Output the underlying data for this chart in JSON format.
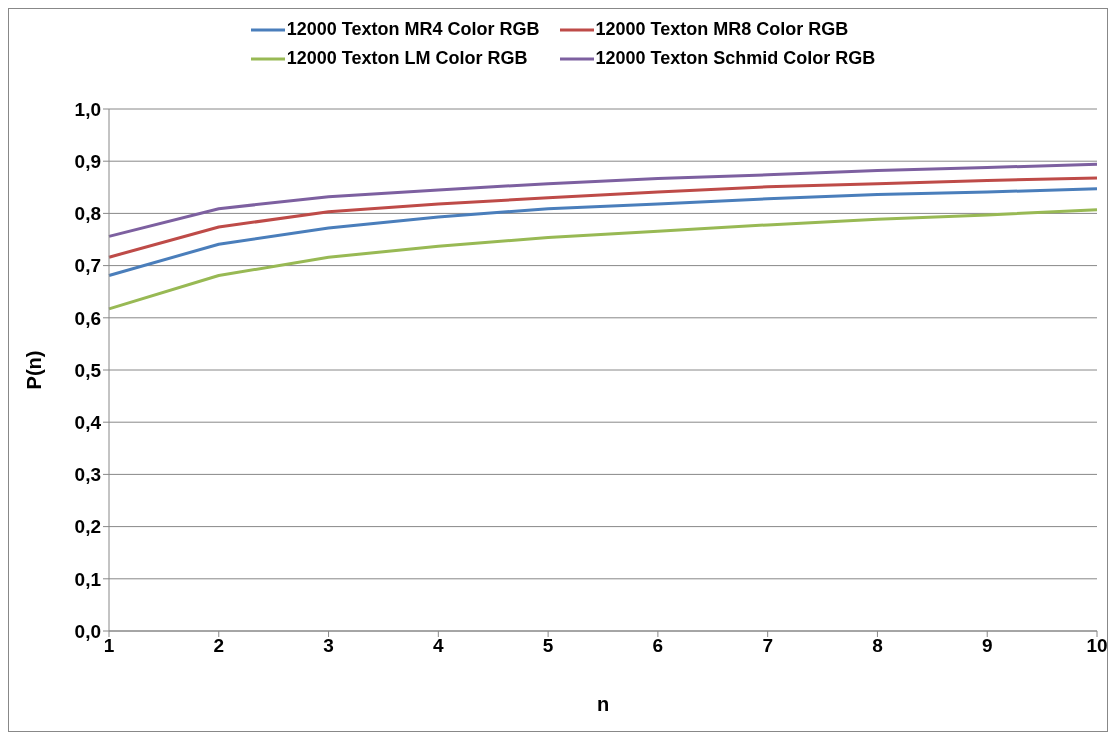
{
  "chart_data": {
    "type": "line",
    "xlabel": "n",
    "ylabel": "P(n)",
    "categories": [
      "1",
      "2",
      "3",
      "4",
      "5",
      "6",
      "7",
      "8",
      "9",
      "10"
    ],
    "series": [
      {
        "name": "12000 Texton MR4 Color RGB",
        "color": "#4a7ebb",
        "values": [
          0.681,
          0.741,
          0.772,
          0.793,
          0.809,
          0.818,
          0.828,
          0.836,
          0.841,
          0.847
        ]
      },
      {
        "name": "12000 Texton MR8 Color RGB",
        "color": "#be4b48",
        "values": [
          0.716,
          0.774,
          0.803,
          0.818,
          0.83,
          0.841,
          0.851,
          0.857,
          0.863,
          0.868
        ]
      },
      {
        "name": "12000 Texton LM Color RGB",
        "color": "#98b954",
        "values": [
          0.617,
          0.681,
          0.716,
          0.737,
          0.754,
          0.766,
          0.778,
          0.789,
          0.797,
          0.807
        ]
      },
      {
        "name": "12000 Texton Schmid Color RGB",
        "color": "#7d60a0",
        "values": [
          0.756,
          0.809,
          0.832,
          0.845,
          0.857,
          0.867,
          0.874,
          0.882,
          0.888,
          0.894
        ]
      }
    ],
    "ylim": [
      0,
      1
    ],
    "yticks": [
      {
        "value": 0,
        "label": "0,0"
      },
      {
        "value": 0.1,
        "label": "0,1"
      },
      {
        "value": 0.2,
        "label": "0,2"
      },
      {
        "value": 0.3,
        "label": "0,3"
      },
      {
        "value": 0.4,
        "label": "0,4"
      },
      {
        "value": 0.5,
        "label": "0,5"
      },
      {
        "value": 0.6,
        "label": "0,6"
      },
      {
        "value": 0.7,
        "label": "0,7"
      },
      {
        "value": 0.8,
        "label": "0,8"
      },
      {
        "value": 0.9,
        "label": "0,9"
      },
      {
        "value": 1,
        "label": "1,0"
      }
    ],
    "grid": "y",
    "legend": "top",
    "marker": "none",
    "line_style": "solid"
  }
}
